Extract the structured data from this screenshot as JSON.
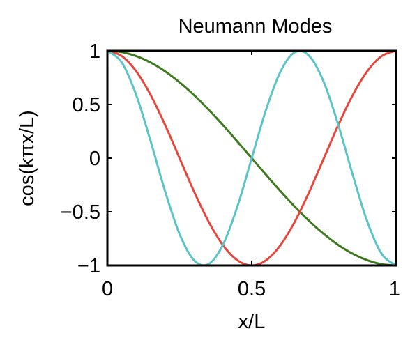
{
  "chart_data": {
    "type": "line",
    "title": "Neumann Modes",
    "xlabel": "x/L",
    "ylabel": "cos(kπx/L)",
    "xlim": [
      0,
      1
    ],
    "ylim": [
      -1,
      1
    ],
    "x_ticks": [
      0,
      0.5,
      1
    ],
    "x_tick_labels": [
      "0",
      "0.5",
      "1"
    ],
    "y_ticks": [
      1,
      0.5,
      0,
      -0.5,
      -1
    ],
    "y_tick_labels": [
      "1",
      "0.5",
      "0",
      "−0.5",
      "−1"
    ],
    "grid": false,
    "x": [
      0,
      0.05,
      0.1,
      0.15,
      0.2,
      0.25,
      0.3,
      0.35,
      0.4,
      0.45,
      0.5,
      0.55,
      0.6,
      0.65,
      0.7,
      0.75,
      0.8,
      0.85,
      0.9,
      0.95,
      1
    ],
    "series": [
      {
        "color": "#1a1a8c",
        "values": [
          1,
          1,
          1,
          1,
          1,
          1,
          1,
          1,
          1,
          1,
          1,
          1,
          1,
          1,
          1,
          1,
          1,
          1,
          1,
          1,
          1
        ]
      },
      {
        "color": "#3d7a1e",
        "values": [
          1,
          0.988,
          0.951,
          0.891,
          0.809,
          0.707,
          0.588,
          0.454,
          0.309,
          0.156,
          0,
          -0.156,
          -0.309,
          -0.454,
          -0.588,
          -0.707,
          -0.809,
          -0.891,
          -0.951,
          -0.988,
          -1
        ]
      },
      {
        "color": "#e8453c",
        "values": [
          1,
          0.951,
          0.809,
          0.588,
          0.309,
          0,
          -0.309,
          -0.588,
          -0.809,
          -0.951,
          -1,
          -0.951,
          -0.809,
          -0.588,
          -0.309,
          0,
          0.309,
          0.588,
          0.809,
          0.951,
          1
        ]
      },
      {
        "color": "#5bc4c8",
        "values": [
          1,
          0.891,
          0.588,
          0.156,
          -0.309,
          -0.707,
          -0.951,
          -0.988,
          -0.809,
          -0.454,
          0,
          0.454,
          0.809,
          0.988,
          0.951,
          0.707,
          0.309,
          -0.156,
          -0.588,
          -0.891,
          -1
        ]
      }
    ]
  }
}
